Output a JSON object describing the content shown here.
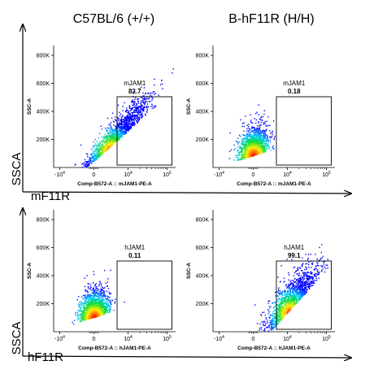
{
  "column_titles": [
    "C57BL/6 (+/+)",
    "B-hF11R (H/H)"
  ],
  "row_labels": [
    {
      "y_label": "SSCA",
      "x_label": "mF11R"
    },
    {
      "y_label": "SSCA",
      "x_label": "hF11R"
    }
  ],
  "chart_data": [
    {
      "type": "scatter",
      "row": 0,
      "col": 0,
      "xlabel": "Comp-B572-A :: mJAM1-PE-A",
      "ylabel": "SSC-A",
      "x_scale": "biexponential",
      "x_ticks": [
        "-10^4",
        "0",
        "10^4",
        "10^5"
      ],
      "y_ticks": [
        "200K",
        "400K",
        "600K",
        "800K"
      ],
      "ylim": [
        0,
        870000
      ],
      "gate": {
        "name": "mJAM1",
        "percent": "82.7"
      },
      "density": {
        "center_x": 0.45,
        "center_y": 0.13,
        "spread": "high-positive"
      }
    },
    {
      "type": "scatter",
      "row": 0,
      "col": 1,
      "xlabel": "Comp-B572-A :: mJAM1-PE-A",
      "ylabel": "SSC-A",
      "x_scale": "biexponential",
      "x_ticks": [
        "-10^4",
        "0",
        "10^4",
        "10^5"
      ],
      "y_ticks": [
        "200K",
        "400K",
        "600K",
        "800K"
      ],
      "ylim": [
        0,
        870000
      ],
      "gate": {
        "name": "mJAM1",
        "percent": "0.18"
      },
      "density": {
        "center_x": 0.0,
        "center_y": 0.1,
        "spread": "negative"
      }
    },
    {
      "type": "scatter",
      "row": 1,
      "col": 0,
      "xlabel": "Comp-B572-A :: hJAM1-PE-A",
      "ylabel": "SSC-A",
      "x_scale": "biexponential",
      "x_ticks": [
        "-10^4",
        "0",
        "10^4",
        "10^5"
      ],
      "y_ticks": [
        "200K",
        "400K",
        "600K",
        "800K"
      ],
      "ylim": [
        0,
        870000
      ],
      "gate": {
        "name": "hJAM1",
        "percent": "0.11"
      },
      "density": {
        "center_x": 0.0,
        "center_y": 0.12,
        "spread": "negative"
      }
    },
    {
      "type": "scatter",
      "row": 1,
      "col": 1,
      "xlabel": "Comp-B572-A :: hJAM1-PE-A",
      "ylabel": "SSC-A",
      "x_scale": "biexponential",
      "x_ticks": [
        "-10^4",
        "0",
        "10^4",
        "10^5"
      ],
      "y_ticks": [
        "200K",
        "400K",
        "600K",
        "800K"
      ],
      "ylim": [
        0,
        870000
      ],
      "gate": {
        "name": "hJAM1",
        "percent": "99.1"
      },
      "density": {
        "center_x": 0.55,
        "center_y": 0.15,
        "spread": "positive"
      }
    }
  ],
  "colors": {
    "axis": "#000000",
    "gate": "#000000",
    "density_low": "#0000ff",
    "density_high": "#ff0000"
  }
}
